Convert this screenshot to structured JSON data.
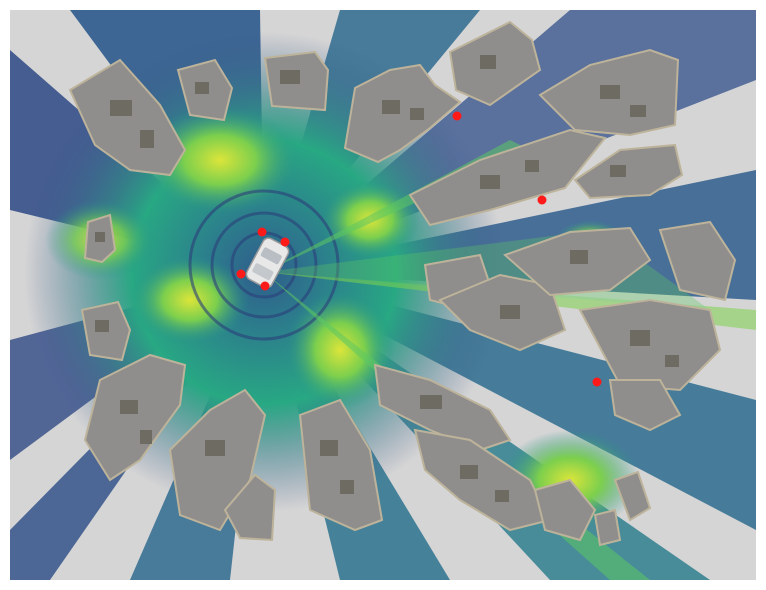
{
  "scene": {
    "kind": "radio coverage heatmap over 3D city blocks",
    "colormap": [
      "#440154",
      "#3b528b",
      "#21908d",
      "#5dc863",
      "#fde725"
    ],
    "background_color": "#d4d4d4",
    "building_color": "#8f8e8c",
    "building_edge_color": "#bdb39a",
    "marker_color": "#ff1a1a"
  },
  "vehicle": {
    "kind": "car",
    "color": "#e8e8e8"
  },
  "markers": {
    "count": 8,
    "on_vehicle": 4,
    "on_buildings": 4
  }
}
